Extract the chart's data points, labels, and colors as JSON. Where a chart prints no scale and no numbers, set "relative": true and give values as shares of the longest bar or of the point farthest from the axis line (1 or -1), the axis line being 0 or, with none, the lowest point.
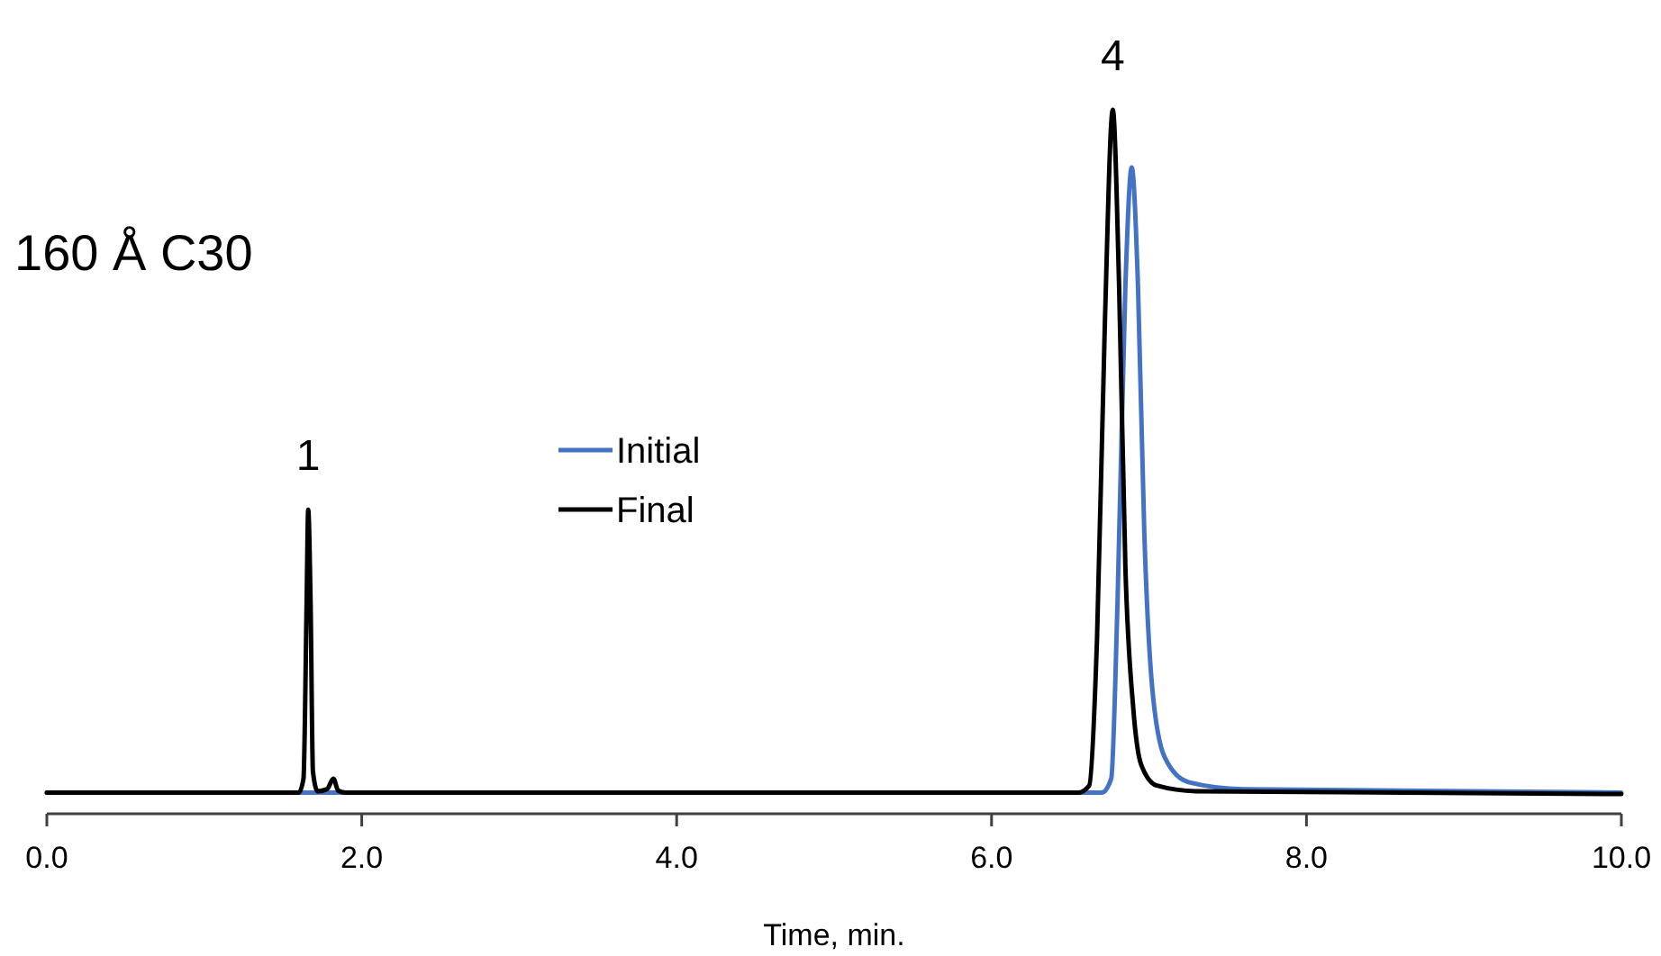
{
  "chart_data": {
    "type": "line",
    "relative": true,
    "xlabel": "Time, min.",
    "xlim": [
      0,
      10
    ],
    "xticks": [
      {
        "value": 0,
        "label": "0.0"
      },
      {
        "value": 2,
        "label": "2.0"
      },
      {
        "value": 4,
        "label": "4.0"
      },
      {
        "value": 6,
        "label": "6.0"
      },
      {
        "value": 8,
        "label": "8.0"
      },
      {
        "value": 10,
        "label": "10.0"
      }
    ],
    "legend": "center",
    "marker": "none",
    "line_style": "solid",
    "grid": false,
    "annotations": [
      "160 Å C30",
      {
        "text": "1",
        "x": 1.66,
        "y": 0.432
      },
      {
        "text": "4",
        "x": 6.77,
        "y": 1
      }
    ],
    "series": [
      {
        "name": "Initial",
        "color": "#4472c4",
        "x": [
          0,
          6.7,
          6.76,
          6.8,
          6.85,
          6.89,
          6.93,
          6.97,
          7.02,
          7.1,
          7.25,
          7.6,
          10
        ],
        "values": [
          0.03,
          0.03,
          0.05,
          0.3,
          0.75,
          0.918,
          0.75,
          0.4,
          0.18,
          0.08,
          0.045,
          0.035,
          0.03
        ]
      },
      {
        "name": "Final",
        "color": "#000000",
        "x": [
          0,
          1.6,
          1.63,
          1.65,
          1.66,
          1.675,
          1.69,
          1.72,
          1.78,
          1.82,
          1.85,
          1.9,
          6.55,
          6.62,
          6.67,
          6.72,
          6.77,
          6.81,
          6.85,
          6.9,
          6.95,
          7.05,
          7.3,
          10
        ],
        "values": [
          0.03,
          0.03,
          0.05,
          0.3,
          0.432,
          0.3,
          0.06,
          0.032,
          0.035,
          0.05,
          0.033,
          0.03,
          0.03,
          0.04,
          0.25,
          0.7,
          1,
          0.75,
          0.35,
          0.15,
          0.07,
          0.04,
          0.032,
          0.028
        ]
      }
    ]
  }
}
